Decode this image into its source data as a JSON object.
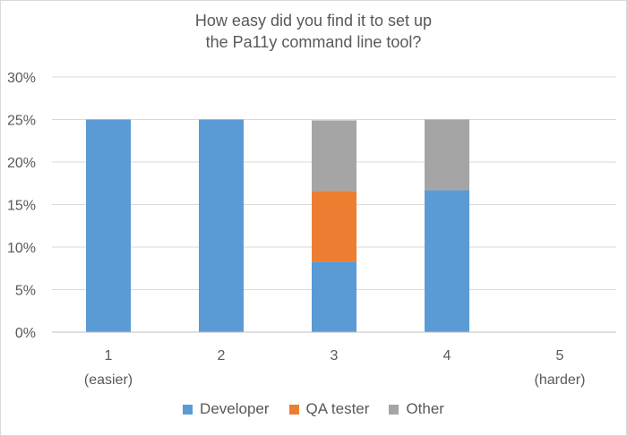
{
  "chart_data": {
    "type": "bar",
    "stacked": true,
    "title_lines": [
      "How easy did you find it to set up",
      "the Pa11y command line tool?"
    ],
    "categories": [
      "1",
      "2",
      "3",
      "4",
      "5"
    ],
    "category_sublabels": [
      "(easier)",
      "",
      "",
      "",
      "(harder)"
    ],
    "series": [
      {
        "name": "Developer",
        "color": "#5b9bd5",
        "values": [
          25,
          25,
          8.3,
          16.7,
          0
        ]
      },
      {
        "name": "QA tester",
        "color": "#ed7d31",
        "values": [
          0,
          0,
          8.3,
          0,
          0
        ]
      },
      {
        "name": "Other",
        "color": "#a5a5a5",
        "values": [
          0,
          0,
          8.3,
          8.3,
          0
        ]
      }
    ],
    "ylim": [
      0,
      30
    ],
    "yticks": [
      0,
      5,
      10,
      15,
      20,
      25,
      30
    ],
    "ytick_labels": [
      "0%",
      "5%",
      "10%",
      "15%",
      "20%",
      "25%",
      "30%"
    ],
    "xlabel": "",
    "ylabel": "",
    "grid": true,
    "legend_position": "bottom"
  }
}
